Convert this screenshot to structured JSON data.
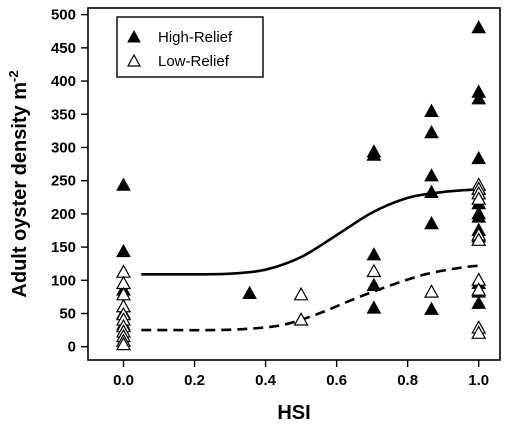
{
  "chart_data": {
    "type": "scatter",
    "xlabel": "HSI",
    "ylabel": "Adult oyster density m",
    "ylabel_superscript": "-2",
    "xlim": [
      -0.1,
      1.06
    ],
    "ylim": [
      -20,
      510
    ],
    "x_ticks": [
      "0.0",
      "0.2",
      "0.4",
      "0.6",
      "0.8",
      "1.0"
    ],
    "y_ticks": [
      "0",
      "50",
      "100",
      "150",
      "200",
      "250",
      "300",
      "350",
      "400",
      "450",
      "500"
    ],
    "legend_position": "top-left",
    "series": [
      {
        "name": "High-Relief",
        "marker": "filled-triangle",
        "points": [
          [
            0.0,
            243
          ],
          [
            0.0,
            143
          ],
          [
            0.0,
            95
          ],
          [
            0.0,
            85
          ],
          [
            0.0,
            60
          ],
          [
            0.0,
            50
          ],
          [
            0.0,
            33
          ],
          [
            0.355,
            80
          ],
          [
            0.705,
            293
          ],
          [
            0.705,
            288
          ],
          [
            0.705,
            138
          ],
          [
            0.705,
            92
          ],
          [
            0.705,
            58
          ],
          [
            0.867,
            354
          ],
          [
            0.867,
            322
          ],
          [
            0.867,
            257
          ],
          [
            0.867,
            232
          ],
          [
            0.867,
            185
          ],
          [
            0.867,
            56
          ],
          [
            1.0,
            480
          ],
          [
            1.0,
            383
          ],
          [
            1.0,
            373
          ],
          [
            1.0,
            283
          ],
          [
            1.0,
            237
          ],
          [
            1.0,
            215
          ],
          [
            1.0,
            200
          ],
          [
            1.0,
            195
          ],
          [
            1.0,
            175
          ],
          [
            1.0,
            165
          ],
          [
            1.0,
            95
          ],
          [
            1.0,
            82
          ],
          [
            1.0,
            65
          ]
        ],
        "fit": {
          "line_style": "solid",
          "points": [
            [
              0.05,
              109
            ],
            [
              0.1,
              109
            ],
            [
              0.2,
              109
            ],
            [
              0.3,
              110
            ],
            [
              0.4,
              116
            ],
            [
              0.5,
              135
            ],
            [
              0.6,
              168
            ],
            [
              0.7,
              202
            ],
            [
              0.8,
              224
            ],
            [
              0.9,
              233
            ],
            [
              1.0,
              237
            ]
          ]
        }
      },
      {
        "name": "Low-Relief",
        "marker": "open-triangle",
        "points": [
          [
            0.0,
            112
          ],
          [
            0.0,
            95
          ],
          [
            0.0,
            78
          ],
          [
            0.0,
            60
          ],
          [
            0.0,
            48
          ],
          [
            0.0,
            40
          ],
          [
            0.0,
            30
          ],
          [
            0.0,
            22
          ],
          [
            0.0,
            15
          ],
          [
            0.0,
            8
          ],
          [
            0.0,
            3
          ],
          [
            0.5,
            78
          ],
          [
            0.5,
            40
          ],
          [
            0.705,
            113
          ],
          [
            0.867,
            82
          ],
          [
            1.0,
            243
          ],
          [
            1.0,
            237
          ],
          [
            1.0,
            230
          ],
          [
            1.0,
            222
          ],
          [
            1.0,
            168
          ],
          [
            1.0,
            160
          ],
          [
            1.0,
            100
          ],
          [
            1.0,
            85
          ],
          [
            1.0,
            28
          ],
          [
            1.0,
            20
          ]
        ],
        "fit": {
          "line_style": "dashed",
          "points": [
            [
              0.05,
              25
            ],
            [
              0.15,
              25
            ],
            [
              0.25,
              25
            ],
            [
              0.35,
              27
            ],
            [
              0.45,
              33
            ],
            [
              0.55,
              50
            ],
            [
              0.65,
              72
            ],
            [
              0.75,
              92
            ],
            [
              0.85,
              109
            ],
            [
              0.95,
              119
            ],
            [
              1.0,
              122
            ]
          ]
        }
      }
    ]
  }
}
